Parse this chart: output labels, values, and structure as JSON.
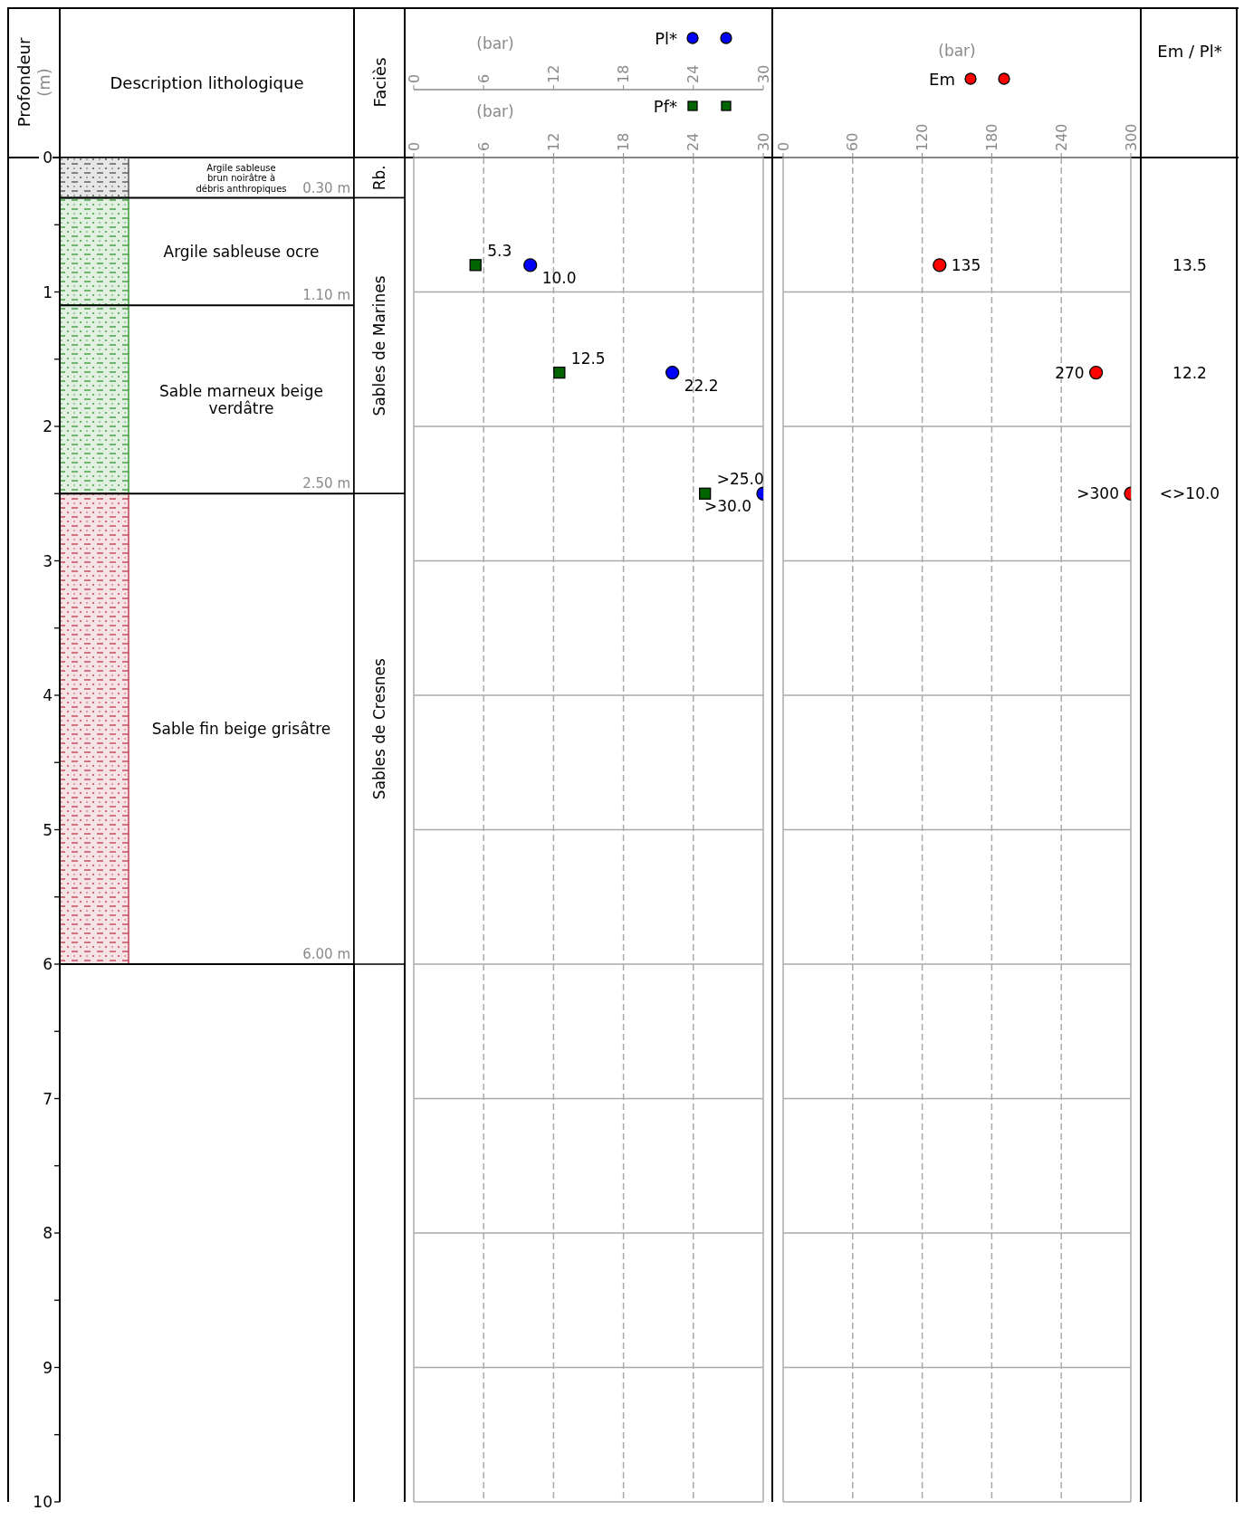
{
  "chart_data": [
    {
      "type": "bar",
      "stacked": true,
      "title": "Description lithologique",
      "ylabel": "Profondeur (m)",
      "categories": [
        null
      ],
      "ylim": [
        10,
        0
      ],
      "yticks": [
        0,
        {
          "value": 0.5,
          "label": null
        },
        1,
        {
          "value": 1.5,
          "label": null
        },
        2,
        {
          "value": 2.5,
          "label": null
        },
        3,
        {
          "value": 3.5,
          "label": null
        },
        4,
        {
          "value": 4.5,
          "label": null
        },
        5,
        {
          "value": 5.5,
          "label": null
        },
        6,
        {
          "value": 6.5,
          "label": null
        },
        7,
        {
          "value": 7.5,
          "label": null
        },
        8,
        {
          "value": 8.5,
          "label": null
        },
        9,
        {
          "value": 9.5,
          "label": null
        },
        10
      ],
      "series": [
        {
          "name": "Argile sableuse brun noirâtre à débris anthropiques",
          "color": "#555555",
          "values": [
            0.3
          ]
        },
        {
          "name": "Argile sableuse ocre",
          "color": "#3c9a3c",
          "values": [
            0.8
          ]
        },
        {
          "name": "Sable marneux beige verdâtre",
          "color": "#3c9a3c",
          "values": [
            1.4
          ]
        },
        {
          "name": "Sable fin beige grisâtre",
          "color": "#c04050",
          "values": [
            3.5
          ]
        }
      ],
      "ref_lines": [
        {
          "axis": "y",
          "value": 0.3,
          "label": "0.30 m"
        },
        {
          "axis": "y",
          "value": 1.1,
          "label": "1.10 m"
        },
        {
          "axis": "y",
          "value": 2.5,
          "label": "2.50 m"
        },
        {
          "axis": "y",
          "value": 6,
          "label": "6.00 m"
        }
      ]
    },
    {
      "type": "bar",
      "stacked": true,
      "title": "Faciès",
      "categories": [
        null
      ],
      "ylim": [
        10,
        0
      ],
      "tick_labels": false,
      "series": [
        {
          "name": "Rb.",
          "color": "#ffffff",
          "values": [
            0.3
          ]
        },
        {
          "name": "Sables de Marines",
          "color": "#ffffff",
          "values": [
            2.2
          ]
        },
        {
          "name": "Sables de Cresnes",
          "color": "#ffffff",
          "values": [
            3.5
          ]
        }
      ]
    },
    {
      "type": "scatter",
      "orientation": "horizontal",
      "legend": "top",
      "grid": true,
      "tick_labels": "x",
      "xlabel": "(bar)",
      "xlim": [
        0,
        30
      ],
      "xticks": [
        0,
        6,
        12,
        18,
        24,
        30
      ],
      "x2label": "(bar)",
      "x2lim": [
        0,
        30
      ],
      "x2ticks": [
        0,
        6,
        12,
        18,
        24,
        30
      ],
      "ylim": [
        10,
        0
      ],
      "yticks": [
        0,
        1,
        2,
        3,
        4,
        5,
        6,
        7,
        8,
        9,
        10
      ],
      "series": [
        {
          "name": "Pl*",
          "color": "#0000ff",
          "marker": "circle",
          "x": [
            0.8,
            1.6,
            2.5
          ],
          "values": [
            10.0,
            22.2,
            30.0
          ],
          "value_labels": [
            "10.0",
            "22.2",
            ">30.0"
          ]
        },
        {
          "name": "Pf*",
          "color": "#006400",
          "marker": "square",
          "axis": "x2",
          "x": [
            0.8,
            1.6,
            2.5
          ],
          "values": [
            5.3,
            12.5,
            25.0
          ],
          "value_labels": [
            "5.3",
            "12.5",
            ">25.0"
          ]
        }
      ]
    },
    {
      "type": "scatter",
      "orientation": "horizontal",
      "legend": "top",
      "grid": true,
      "tick_labels": "x",
      "xlabel": "(bar)",
      "xlim": [
        0,
        300
      ],
      "xticks": [
        0,
        60,
        120,
        180,
        240,
        300
      ],
      "ylim": [
        10,
        0
      ],
      "yticks": [
        0,
        1,
        2,
        3,
        4,
        5,
        6,
        7,
        8,
        9,
        10
      ],
      "series": [
        {
          "name": "Em",
          "color": "#ff0000",
          "marker": "circle",
          "x": [
            0.8,
            1.6,
            2.5
          ],
          "values": [
            135,
            270,
            300
          ],
          "value_labels": [
            "135",
            "270",
            ">300"
          ]
        }
      ],
      "annotations": [
        "Em / Pl*",
        "13.5",
        "12.2",
        "<>10.0"
      ]
    }
  ]
}
